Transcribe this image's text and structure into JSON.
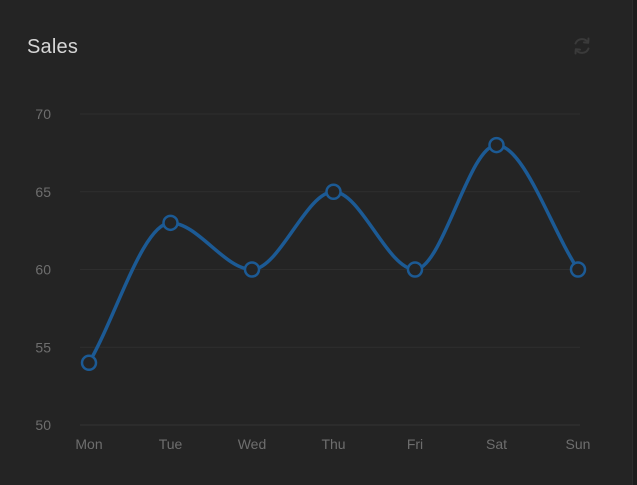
{
  "header": {
    "title": "Sales",
    "refresh_icon": "refresh-icon"
  },
  "colors": {
    "background": "#242424",
    "line": "#1c5a94",
    "grid": "#2e2e2e",
    "tick_text": "#6e6e6e",
    "title_text": "#d6d6d6"
  },
  "chart_data": {
    "type": "line",
    "title": "Sales",
    "xlabel": "",
    "ylabel": "",
    "categories": [
      "Mon",
      "Tue",
      "Wed",
      "Thu",
      "Fri",
      "Sat",
      "Sun"
    ],
    "series": [
      {
        "name": "Sales",
        "values": [
          54,
          63,
          60,
          65,
          60,
          68,
          60
        ]
      }
    ],
    "ylim": [
      50,
      70
    ],
    "yticks": [
      50,
      55,
      60,
      65,
      70
    ],
    "smooth": true,
    "grid": true,
    "legend": "none"
  }
}
